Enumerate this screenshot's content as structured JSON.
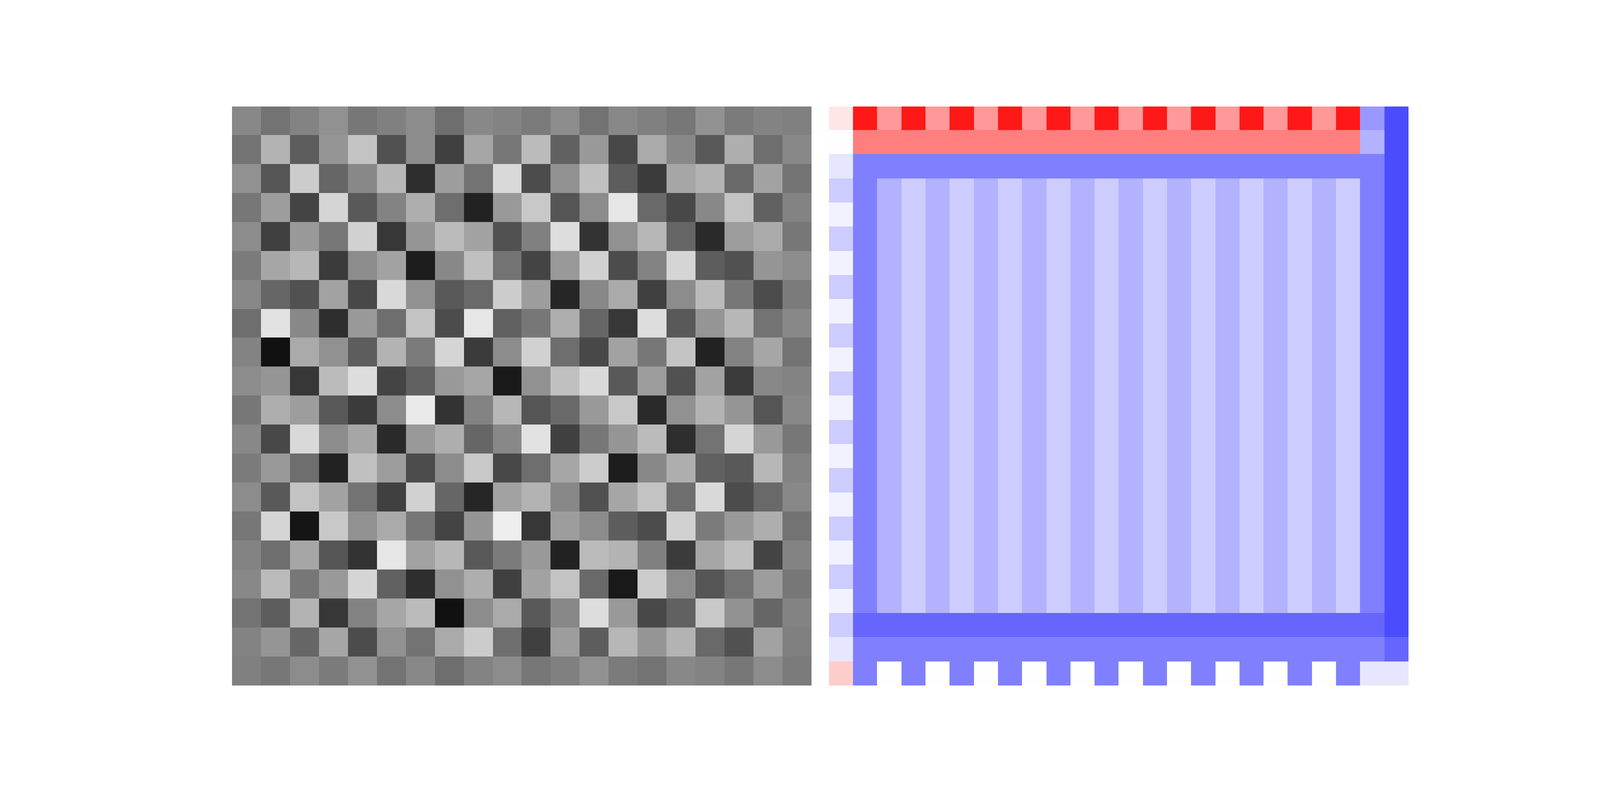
{
  "chart_data": [
    {
      "type": "heatmap",
      "tick_labels": false,
      "color_range": [
        -3,
        3
      ],
      "cells": [
        [
          0.2,
          -0.3,
          0.1,
          0.4,
          -0.2,
          0.0,
          0.3,
          -0.4,
          0.2,
          0.1,
          -0.1,
          0.3,
          -0.3,
          0.2,
          0.0,
          -0.2,
          0.4,
          -0.1,
          0.1,
          0.0
        ],
        [
          -0.3,
          1.2,
          -0.8,
          0.5,
          1.6,
          -1.1,
          0.3,
          -1.5,
          0.9,
          -0.2,
          1.4,
          -0.7,
          0.6,
          -1.3,
          1.0,
          0.2,
          -0.9,
          1.1,
          -0.4,
          0.2
        ],
        [
          0.4,
          -1.0,
          1.8,
          -0.6,
          0.2,
          1.3,
          -1.9,
          0.7,
          -0.3,
          2.1,
          -1.2,
          0.4,
          1.5,
          -0.8,
          -1.6,
          0.9,
          1.2,
          -0.5,
          0.8,
          -0.3
        ],
        [
          -0.2,
          0.7,
          -1.4,
          2.0,
          -0.9,
          0.1,
          1.1,
          -0.4,
          -2.2,
          0.6,
          1.7,
          -1.0,
          0.3,
          2.4,
          -0.5,
          -1.3,
          0.2,
          1.6,
          -0.7,
          0.1
        ],
        [
          0.3,
          -1.5,
          0.6,
          -0.2,
          1.9,
          -1.7,
          0.5,
          1.4,
          0.8,
          -1.1,
          0.0,
          2.2,
          -1.8,
          0.4,
          1.3,
          -0.6,
          -2.0,
          0.7,
          1.0,
          -0.2
        ],
        [
          -0.1,
          0.9,
          1.3,
          -1.6,
          0.3,
          0.8,
          -2.3,
          0.2,
          1.5,
          -0.3,
          -1.4,
          0.6,
          1.9,
          -1.2,
          0.1,
          2.0,
          -0.8,
          -1.1,
          0.5,
          0.3
        ],
        [
          0.2,
          -0.6,
          -1.1,
          0.8,
          -1.3,
          2.1,
          0.4,
          -0.9,
          -0.5,
          1.8,
          0.7,
          -2.1,
          0.2,
          1.0,
          -1.5,
          0.3,
          1.4,
          -0.2,
          -1.2,
          -0.1
        ],
        [
          -0.4,
          2.3,
          0.2,
          -1.9,
          0.6,
          -0.4,
          1.6,
          -1.2,
          2.4,
          -0.7,
          -0.2,
          1.1,
          -0.6,
          -1.7,
          2.2,
          -0.9,
          0.5,
          1.3,
          -0.3,
          0.2
        ],
        [
          0.1,
          -2.6,
          1.0,
          0.4,
          -0.8,
          1.2,
          -0.1,
          2.0,
          -1.6,
          0.3,
          1.9,
          -0.4,
          -1.3,
          0.8,
          -0.2,
          1.6,
          -2.2,
          0.1,
          0.9,
          -0.3
        ],
        [
          0.3,
          0.5,
          -1.7,
          1.4,
          2.2,
          -1.4,
          -0.7,
          0.6,
          0.9,
          -2.4,
          0.4,
          1.5,
          2.1,
          -0.9,
          0.7,
          -1.1,
          0.8,
          -1.6,
          0.2,
          0.1
        ],
        [
          -0.2,
          1.1,
          0.7,
          -0.9,
          -1.6,
          0.3,
          2.5,
          -1.8,
          0.1,
          1.3,
          -1.0,
          -0.5,
          0.6,
          1.7,
          -2.0,
          0.4,
          1.2,
          0.5,
          -1.0,
          0.2
        ],
        [
          0.2,
          -1.3,
          2.1,
          0.3,
          0.9,
          -2.0,
          0.6,
          1.1,
          -0.6,
          0.2,
          2.3,
          -1.5,
          -0.2,
          0.5,
          1.4,
          -1.9,
          -0.3,
          2.0,
          0.6,
          -0.2
        ],
        [
          -0.1,
          0.6,
          -0.4,
          -2.2,
          1.5,
          0.7,
          -1.2,
          0.3,
          1.7,
          -1.3,
          -0.4,
          0.9,
          1.8,
          -2.3,
          0.2,
          1.1,
          -0.7,
          -0.9,
          1.3,
          0.1
        ],
        [
          0.3,
          -0.9,
          1.6,
          0.8,
          -0.3,
          -1.5,
          1.9,
          -0.6,
          -2.1,
          0.8,
          1.2,
          0.2,
          -1.1,
          0.9,
          1.6,
          -0.4,
          2.1,
          -1.2,
          -0.5,
          0.2
        ],
        [
          -0.2,
          2.0,
          -2.5,
          1.7,
          0.4,
          1.0,
          -0.2,
          -1.4,
          0.5,
          2.6,
          -1.7,
          0.7,
          0.3,
          -0.8,
          -1.2,
          1.9,
          -0.1,
          0.6,
          1.1,
          -0.3
        ],
        [
          0.1,
          -0.4,
          0.9,
          -1.0,
          -1.8,
          2.4,
          0.8,
          1.3,
          -0.9,
          -0.1,
          0.6,
          -2.2,
          1.4,
          1.2,
          0.0,
          -1.6,
          0.9,
          1.5,
          -1.4,
          0.1
        ],
        [
          0.2,
          1.4,
          -0.2,
          0.6,
          2.0,
          -0.7,
          -1.9,
          0.4,
          1.1,
          -1.5,
          0.8,
          1.6,
          -0.5,
          -2.4,
          1.8,
          0.3,
          -1.0,
          -0.3,
          0.7,
          -0.2
        ],
        [
          -0.3,
          -0.8,
          1.2,
          -1.7,
          0.1,
          0.9,
          1.4,
          -2.6,
          0.3,
          1.0,
          -0.9,
          0.2,
          2.2,
          0.6,
          -1.3,
          -0.7,
          1.7,
          0.4,
          -0.6,
          0.1
        ],
        [
          0.1,
          0.5,
          -0.6,
          0.9,
          -1.2,
          0.4,
          -0.3,
          1.0,
          1.8,
          -0.4,
          -1.5,
          0.7,
          -0.8,
          1.3,
          0.5,
          1.2,
          -0.5,
          -1.1,
          0.8,
          0.0
        ],
        [
          0.0,
          -0.2,
          0.3,
          -0.1,
          0.4,
          -0.3,
          0.2,
          -0.4,
          0.1,
          0.3,
          -0.2,
          0.0,
          0.4,
          -0.1,
          -0.3,
          0.2,
          0.1,
          -0.2,
          0.3,
          -0.1
        ]
      ]
    },
    {
      "type": "heatmap",
      "tick_labels": false,
      "color_range": [
        -1,
        1
      ],
      "cells": [
        [
          0.1,
          0.9,
          0.4,
          0.9,
          0.4,
          0.9,
          0.4,
          0.9,
          0.4,
          0.9,
          0.4,
          0.9,
          0.4,
          0.9,
          0.4,
          0.9,
          0.4,
          0.9,
          0.4,
          0.9,
          0.4,
          0.9,
          -0.4,
          -0.7
        ],
        [
          0.0,
          0.5,
          0.5,
          0.5,
          0.5,
          0.5,
          0.5,
          0.5,
          0.5,
          0.5,
          0.5,
          0.5,
          0.5,
          0.5,
          0.5,
          0.5,
          0.5,
          0.5,
          0.5,
          0.5,
          0.5,
          0.5,
          -0.3,
          -0.7
        ],
        [
          -0.1,
          -0.5,
          -0.5,
          -0.5,
          -0.5,
          -0.5,
          -0.5,
          -0.5,
          -0.5,
          -0.5,
          -0.5,
          -0.5,
          -0.5,
          -0.5,
          -0.5,
          -0.5,
          -0.5,
          -0.5,
          -0.5,
          -0.5,
          -0.5,
          -0.5,
          -0.5,
          -0.7
        ],
        [
          -0.2,
          -0.5,
          -0.3,
          -0.2,
          -0.3,
          -0.2,
          -0.3,
          -0.2,
          -0.3,
          -0.2,
          -0.3,
          -0.2,
          -0.3,
          -0.2,
          -0.3,
          -0.2,
          -0.3,
          -0.2,
          -0.3,
          -0.2,
          -0.3,
          -0.2,
          -0.5,
          -0.7
        ],
        [
          -0.05,
          -0.5,
          -0.3,
          -0.2,
          -0.3,
          -0.2,
          -0.3,
          -0.2,
          -0.3,
          -0.2,
          -0.3,
          -0.2,
          -0.3,
          -0.2,
          -0.3,
          -0.2,
          -0.3,
          -0.2,
          -0.3,
          -0.2,
          -0.3,
          -0.2,
          -0.5,
          -0.7
        ],
        [
          -0.2,
          -0.5,
          -0.3,
          -0.2,
          -0.3,
          -0.2,
          -0.3,
          -0.2,
          -0.3,
          -0.2,
          -0.3,
          -0.2,
          -0.3,
          -0.2,
          -0.3,
          -0.2,
          -0.3,
          -0.2,
          -0.3,
          -0.2,
          -0.3,
          -0.2,
          -0.5,
          -0.7
        ],
        [
          -0.05,
          -0.5,
          -0.3,
          -0.2,
          -0.3,
          -0.2,
          -0.3,
          -0.2,
          -0.3,
          -0.2,
          -0.3,
          -0.2,
          -0.3,
          -0.2,
          -0.3,
          -0.2,
          -0.3,
          -0.2,
          -0.3,
          -0.2,
          -0.3,
          -0.2,
          -0.5,
          -0.7
        ],
        [
          -0.2,
          -0.5,
          -0.3,
          -0.2,
          -0.3,
          -0.2,
          -0.3,
          -0.2,
          -0.3,
          -0.2,
          -0.3,
          -0.2,
          -0.3,
          -0.2,
          -0.3,
          -0.2,
          -0.3,
          -0.2,
          -0.3,
          -0.2,
          -0.3,
          -0.2,
          -0.5,
          -0.7
        ],
        [
          -0.05,
          -0.5,
          -0.3,
          -0.2,
          -0.3,
          -0.2,
          -0.3,
          -0.2,
          -0.3,
          -0.2,
          -0.3,
          -0.2,
          -0.3,
          -0.2,
          -0.3,
          -0.2,
          -0.3,
          -0.2,
          -0.3,
          -0.2,
          -0.3,
          -0.2,
          -0.5,
          -0.7
        ],
        [
          -0.2,
          -0.5,
          -0.3,
          -0.2,
          -0.3,
          -0.2,
          -0.3,
          -0.2,
          -0.3,
          -0.2,
          -0.3,
          -0.2,
          -0.3,
          -0.2,
          -0.3,
          -0.2,
          -0.3,
          -0.2,
          -0.3,
          -0.2,
          -0.3,
          -0.2,
          -0.5,
          -0.7
        ],
        [
          -0.05,
          -0.5,
          -0.3,
          -0.2,
          -0.3,
          -0.2,
          -0.3,
          -0.2,
          -0.3,
          -0.2,
          -0.3,
          -0.2,
          -0.3,
          -0.2,
          -0.3,
          -0.2,
          -0.3,
          -0.2,
          -0.3,
          -0.2,
          -0.3,
          -0.2,
          -0.5,
          -0.7
        ],
        [
          -0.2,
          -0.5,
          -0.3,
          -0.2,
          -0.3,
          -0.2,
          -0.3,
          -0.2,
          -0.3,
          -0.2,
          -0.3,
          -0.2,
          -0.3,
          -0.2,
          -0.3,
          -0.2,
          -0.3,
          -0.2,
          -0.3,
          -0.2,
          -0.3,
          -0.2,
          -0.5,
          -0.7
        ],
        [
          -0.05,
          -0.5,
          -0.3,
          -0.2,
          -0.3,
          -0.2,
          -0.3,
          -0.2,
          -0.3,
          -0.2,
          -0.3,
          -0.2,
          -0.3,
          -0.2,
          -0.3,
          -0.2,
          -0.3,
          -0.2,
          -0.3,
          -0.2,
          -0.3,
          -0.2,
          -0.5,
          -0.7
        ],
        [
          -0.2,
          -0.5,
          -0.3,
          -0.2,
          -0.3,
          -0.2,
          -0.3,
          -0.2,
          -0.3,
          -0.2,
          -0.3,
          -0.2,
          -0.3,
          -0.2,
          -0.3,
          -0.2,
          -0.3,
          -0.2,
          -0.3,
          -0.2,
          -0.3,
          -0.2,
          -0.5,
          -0.7
        ],
        [
          -0.05,
          -0.5,
          -0.3,
          -0.2,
          -0.3,
          -0.2,
          -0.3,
          -0.2,
          -0.3,
          -0.2,
          -0.3,
          -0.2,
          -0.3,
          -0.2,
          -0.3,
          -0.2,
          -0.3,
          -0.2,
          -0.3,
          -0.2,
          -0.3,
          -0.2,
          -0.5,
          -0.7
        ],
        [
          -0.2,
          -0.5,
          -0.3,
          -0.2,
          -0.3,
          -0.2,
          -0.3,
          -0.2,
          -0.3,
          -0.2,
          -0.3,
          -0.2,
          -0.3,
          -0.2,
          -0.3,
          -0.2,
          -0.3,
          -0.2,
          -0.3,
          -0.2,
          -0.3,
          -0.2,
          -0.5,
          -0.7
        ],
        [
          -0.05,
          -0.5,
          -0.3,
          -0.2,
          -0.3,
          -0.2,
          -0.3,
          -0.2,
          -0.3,
          -0.2,
          -0.3,
          -0.2,
          -0.3,
          -0.2,
          -0.3,
          -0.2,
          -0.3,
          -0.2,
          -0.3,
          -0.2,
          -0.3,
          -0.2,
          -0.5,
          -0.7
        ],
        [
          -0.2,
          -0.5,
          -0.3,
          -0.2,
          -0.3,
          -0.2,
          -0.3,
          -0.2,
          -0.3,
          -0.2,
          -0.3,
          -0.2,
          -0.3,
          -0.2,
          -0.3,
          -0.2,
          -0.3,
          -0.2,
          -0.3,
          -0.2,
          -0.3,
          -0.2,
          -0.5,
          -0.7
        ],
        [
          -0.05,
          -0.5,
          -0.3,
          -0.2,
          -0.3,
          -0.2,
          -0.3,
          -0.2,
          -0.3,
          -0.2,
          -0.3,
          -0.2,
          -0.3,
          -0.2,
          -0.3,
          -0.2,
          -0.3,
          -0.2,
          -0.3,
          -0.2,
          -0.3,
          -0.2,
          -0.5,
          -0.7
        ],
        [
          -0.2,
          -0.5,
          -0.3,
          -0.2,
          -0.3,
          -0.2,
          -0.3,
          -0.2,
          -0.3,
          -0.2,
          -0.3,
          -0.2,
          -0.3,
          -0.2,
          -0.3,
          -0.2,
          -0.3,
          -0.2,
          -0.3,
          -0.2,
          -0.3,
          -0.2,
          -0.5,
          -0.7
        ],
        [
          -0.05,
          -0.5,
          -0.3,
          -0.2,
          -0.3,
          -0.2,
          -0.3,
          -0.2,
          -0.3,
          -0.2,
          -0.3,
          -0.2,
          -0.3,
          -0.2,
          -0.3,
          -0.2,
          -0.3,
          -0.2,
          -0.3,
          -0.2,
          -0.3,
          -0.2,
          -0.5,
          -0.7
        ],
        [
          -0.2,
          -0.6,
          -0.6,
          -0.6,
          -0.6,
          -0.6,
          -0.6,
          -0.6,
          -0.6,
          -0.6,
          -0.6,
          -0.6,
          -0.6,
          -0.6,
          -0.6,
          -0.6,
          -0.6,
          -0.6,
          -0.6,
          -0.6,
          -0.6,
          -0.6,
          -0.6,
          -0.7
        ],
        [
          -0.1,
          -0.5,
          -0.5,
          -0.5,
          -0.5,
          -0.5,
          -0.5,
          -0.5,
          -0.5,
          -0.5,
          -0.5,
          -0.5,
          -0.5,
          -0.5,
          -0.5,
          -0.5,
          -0.5,
          -0.5,
          -0.5,
          -0.5,
          -0.5,
          -0.5,
          -0.5,
          -0.6
        ],
        [
          0.2,
          -0.5,
          0.0,
          -0.5,
          0.0,
          -0.5,
          0.0,
          -0.5,
          0.0,
          -0.5,
          0.0,
          -0.5,
          0.0,
          -0.5,
          0.0,
          -0.5,
          0.0,
          -0.5,
          0.0,
          -0.5,
          0.0,
          -0.5,
          -0.1,
          -0.1
        ]
      ]
    }
  ]
}
